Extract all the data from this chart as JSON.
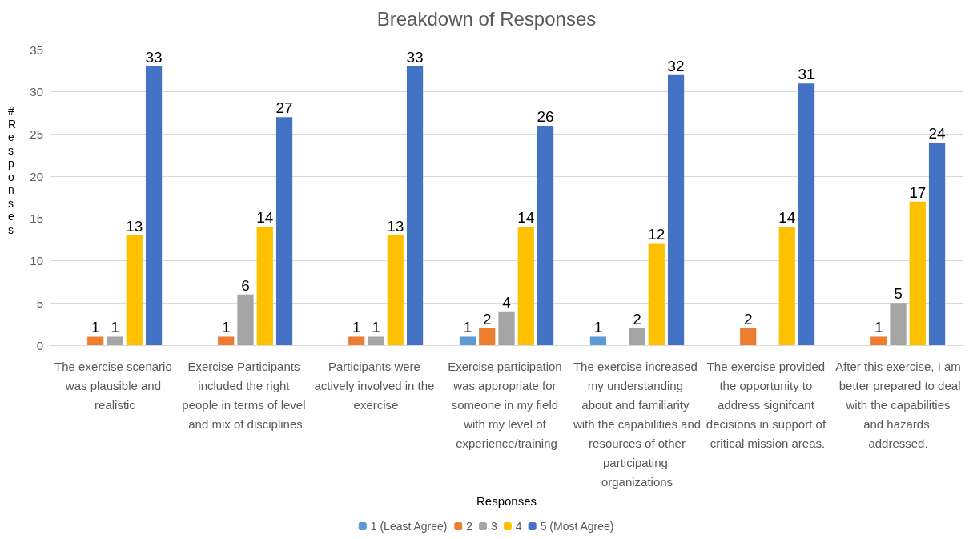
{
  "chart_data": {
    "type": "bar",
    "title": "Breakdown of Responses",
    "xlabel": "Responses",
    "ylabel": "# Responses",
    "categories": [
      "The exercise scenario was plausible and realistic",
      "Exercise Participants included the right people in terms of level and mix of disciplines",
      "Participants were actively involved in the exercise",
      "Exercise participation was appropriate for someone in my field with my level of experience/training",
      "The exercise increased my understanding about and familiarity with the capabilities and resources of other participating organizations",
      "The exercise provided the opportunity to address signifcant decisions in support of critical mission areas.",
      "After this exercise, I am better prepared to deal with the capabilities and hazards addressed."
    ],
    "series": [
      {
        "name": "1 (Least Agree)",
        "color": "#5b9bd5",
        "values": [
          null,
          null,
          null,
          1,
          1,
          null,
          null
        ]
      },
      {
        "name": "2",
        "color": "#ed7d31",
        "values": [
          1,
          1,
          1,
          2,
          null,
          2,
          1
        ]
      },
      {
        "name": "3",
        "color": "#a5a5a5",
        "values": [
          1,
          6,
          1,
          4,
          2,
          null,
          5
        ]
      },
      {
        "name": "4",
        "color": "#ffc000",
        "values": [
          13,
          14,
          13,
          14,
          12,
          14,
          17
        ]
      },
      {
        "name": "5 (Most Agree)",
        "color": "#4472c4",
        "values": [
          33,
          27,
          33,
          26,
          32,
          31,
          24
        ]
      }
    ],
    "ylim": [
      0,
      35
    ],
    "yticks": [
      0,
      5,
      10,
      15,
      20,
      25,
      30,
      35
    ],
    "grid": "y",
    "legend": "bottom",
    "data_labels": true
  }
}
